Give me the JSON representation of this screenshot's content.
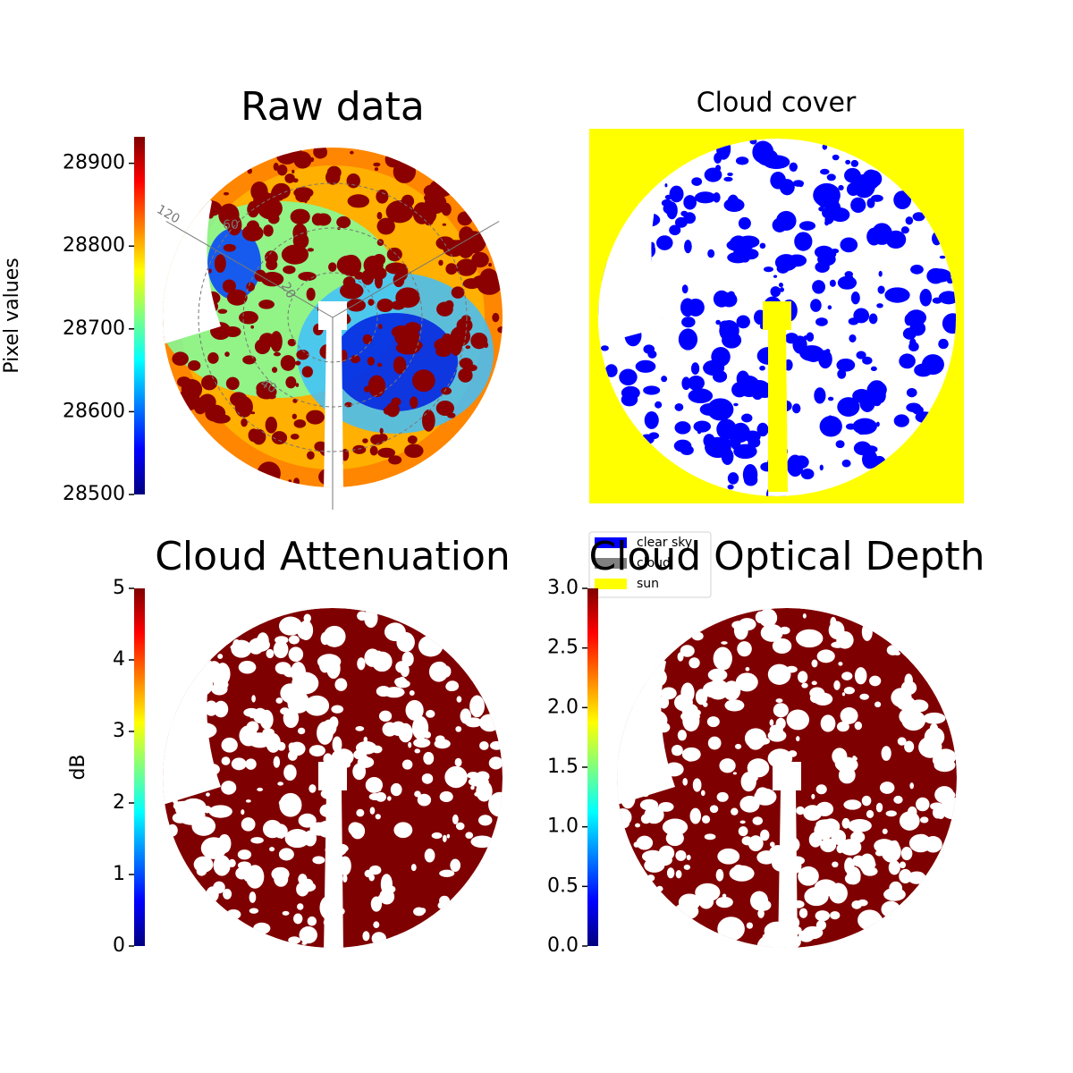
{
  "chart_data": [
    {
      "type": "image",
      "title": "Raw data",
      "colormap": "jet",
      "colorbar": {
        "label": "Pixel values",
        "ylim": [
          28500,
          28932
        ],
        "yticks": [
          28500,
          28600,
          28700,
          28800,
          28900
        ]
      },
      "annotations": [
        "120",
        "60",
        "20",
        "40"
      ]
    },
    {
      "type": "image",
      "title": "Cloud cover",
      "legend": {
        "entries": [
          {
            "name": "clear sky",
            "color": "#0000ff"
          },
          {
            "name": "cloud",
            "color": "#808080"
          },
          {
            "name": "sun",
            "color": "#ffff00"
          }
        ]
      }
    },
    {
      "type": "image",
      "title": "Cloud Attenuation",
      "colormap": "jet",
      "colorbar": {
        "label": "dB",
        "ylim": [
          0,
          5
        ],
        "yticks": [
          0,
          1,
          2,
          3,
          4,
          5
        ]
      }
    },
    {
      "type": "image",
      "title": "Cloud Optical Depth",
      "colormap": "jet",
      "colorbar": {
        "ylim": [
          0,
          3
        ],
        "yticks": [
          {
            "value": 0,
            "label": "0.0"
          },
          {
            "value": 0.5,
            "label": "0.5"
          },
          {
            "value": 1,
            "label": "1.0"
          },
          {
            "value": 1.5,
            "label": "1.5"
          },
          {
            "value": 2,
            "label": "2.0"
          },
          {
            "value": 2.5,
            "label": "2.5"
          },
          {
            "value": 3,
            "label": "3.0"
          }
        ]
      }
    }
  ]
}
